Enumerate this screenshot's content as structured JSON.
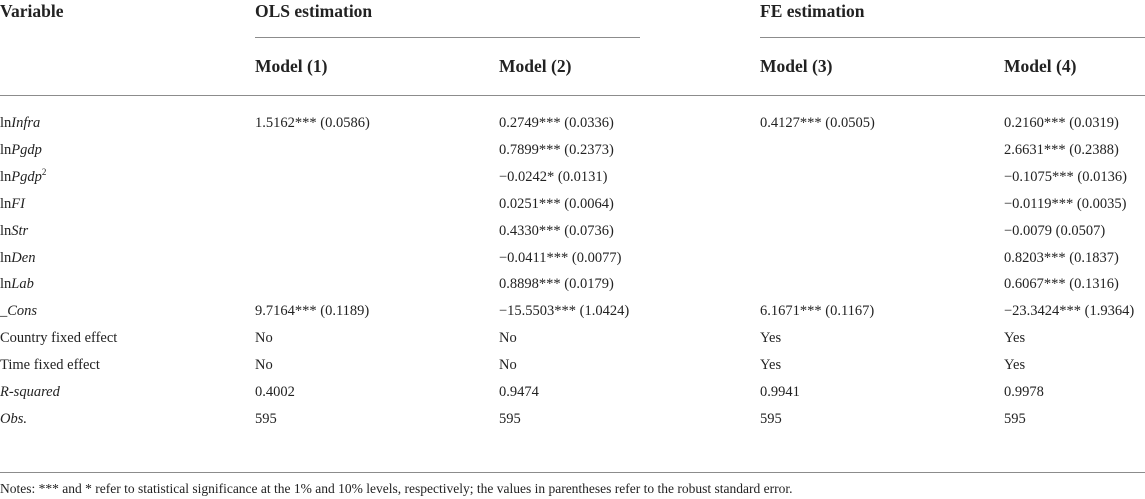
{
  "header": {
    "variable": "Variable",
    "ols": "OLS estimation",
    "fe": "FE estimation",
    "models": [
      "Model (1)",
      "Model (2)",
      "Model (3)",
      "Model (4)"
    ]
  },
  "rows": [
    {
      "pre": "ln",
      "it": "Infra",
      "sup": "",
      "vals": [
        "1.5162*** (0.0586)",
        "0.2749*** (0.0336)",
        "0.4127*** (0.0505)",
        "0.2160*** (0.0319)"
      ]
    },
    {
      "pre": "ln",
      "it": "Pgdp",
      "sup": "",
      "vals": [
        "",
        "0.7899*** (0.2373)",
        "",
        "2.6631*** (0.2388)"
      ]
    },
    {
      "pre": "ln",
      "it": "Pgdp",
      "sup": "2",
      "vals": [
        "",
        "−0.0242* (0.0131)",
        "",
        "−0.1075*** (0.0136)"
      ]
    },
    {
      "pre": "ln",
      "it": "FI",
      "sup": "",
      "vals": [
        "",
        "0.0251*** (0.0064)",
        "",
        "−0.0119*** (0.0035)"
      ]
    },
    {
      "pre": "ln",
      "it": "Str",
      "sup": "",
      "vals": [
        "",
        "0.4330*** (0.0736)",
        "",
        "−0.0079 (0.0507)"
      ]
    },
    {
      "pre": "ln",
      "it": "Den",
      "sup": "",
      "vals": [
        "",
        "−0.0411*** (0.0077)",
        "",
        "0.8203*** (0.1837)"
      ]
    },
    {
      "pre": "ln",
      "it": "Lab",
      "sup": "",
      "vals": [
        "",
        "0.8898*** (0.0179)",
        "",
        "0.6067*** (0.1316)"
      ]
    },
    {
      "pre": "_",
      "it": "Cons",
      "sup": "",
      "vals": [
        "9.7164*** (0.1189)",
        "−15.5503*** (1.0424)",
        "6.1671*** (0.1167)",
        "−23.3424*** (1.9364)"
      ]
    },
    {
      "pre": "Country fixed effect",
      "it": "",
      "sup": "",
      "vals": [
        "No",
        "No",
        "Yes",
        "Yes"
      ]
    },
    {
      "pre": "Time fixed effect",
      "it": "",
      "sup": "",
      "vals": [
        "No",
        "No",
        "Yes",
        "Yes"
      ]
    },
    {
      "pre": "",
      "it": "R-squared",
      "sup": "",
      "vals": [
        "0.4002",
        "0.9474",
        "0.9941",
        "0.9978"
      ]
    },
    {
      "pre": "",
      "it": "Obs.",
      "sup": "",
      "vals": [
        "595",
        "595",
        "595",
        "595"
      ]
    }
  ],
  "notes": "Notes: *** and * refer to statistical significance at the 1% and 10% levels, respectively; the values in parentheses refer to the robust standard error."
}
